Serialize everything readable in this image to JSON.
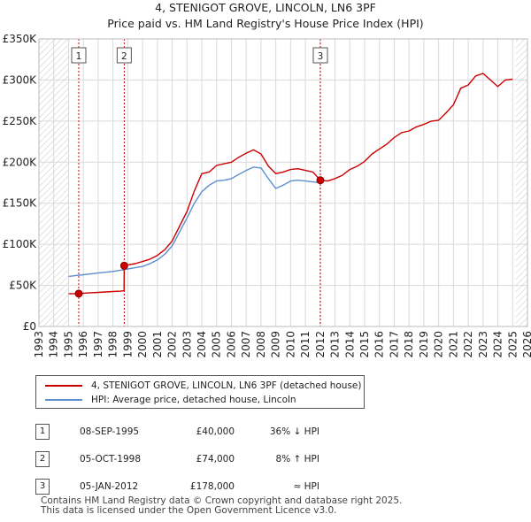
{
  "chart_data": {
    "type": "line",
    "title": "4, STENIGOT GROVE, LINCOLN, LN6 3PF",
    "subtitle": "Price paid vs. HM Land Registry's House Price Index (HPI)",
    "xlim": [
      1993,
      2026
    ],
    "ylim": [
      0,
      350000
    ],
    "x_ticks": [
      "1993",
      "1994",
      "1995",
      "1996",
      "1997",
      "1998",
      "1999",
      "2000",
      "2001",
      "2002",
      "2003",
      "2004",
      "2005",
      "2006",
      "2007",
      "2008",
      "2009",
      "2010",
      "2011",
      "2012",
      "2013",
      "2014",
      "2015",
      "2016",
      "2017",
      "2018",
      "2019",
      "2020",
      "2021",
      "2022",
      "2023",
      "2024",
      "2025",
      "2026"
    ],
    "y_ticks": [
      {
        "value": 0,
        "label": "£0"
      },
      {
        "value": 50000,
        "label": "£50K"
      },
      {
        "value": 100000,
        "label": "£100K"
      },
      {
        "value": 150000,
        "label": "£150K"
      },
      {
        "value": 200000,
        "label": "£200K"
      },
      {
        "value": 250000,
        "label": "£250K"
      },
      {
        "value": 300000,
        "label": "£300K"
      },
      {
        "value": 350000,
        "label": "£350K"
      }
    ],
    "hatch_ranges": [
      [
        1993,
        1995
      ],
      [
        2025.2,
        2026
      ]
    ],
    "series": [
      {
        "name": "4, STENIGOT GROVE, LINCOLN, LN6 3PF (detached house)",
        "color": "#cc0000",
        "x": [
          1995.0,
          1995.69,
          1996.0,
          1996.5,
          1997.0,
          1997.5,
          1998.0,
          1998.5,
          1998.75,
          1998.76,
          1999.0,
          1999.5,
          2000.0,
          2000.5,
          2001.0,
          2001.5,
          2002.0,
          2002.5,
          2003.0,
          2003.5,
          2004.0,
          2004.5,
          2005.0,
          2005.5,
          2006.0,
          2006.5,
          2007.0,
          2007.5,
          2008.0,
          2008.5,
          2009.0,
          2009.5,
          2010.0,
          2010.5,
          2011.0,
          2011.5,
          2012.01,
          2012.5,
          2013.0,
          2013.5,
          2014.0,
          2014.5,
          2015.0,
          2015.5,
          2016.0,
          2016.5,
          2017.0,
          2017.5,
          2018.0,
          2018.5,
          2019.0,
          2019.5,
          2020.0,
          2020.5,
          2021.0,
          2021.5,
          2022.0,
          2022.5,
          2023.0,
          2023.5,
          2024.0,
          2024.5,
          2025.0
        ],
        "y": [
          40000,
          40000,
          40500,
          41000,
          41500,
          42000,
          42500,
          43000,
          43500,
          74000,
          75000,
          76500,
          79000,
          82000,
          86500,
          93500,
          104000,
          122000,
          140000,
          165000,
          186000,
          188000,
          196000,
          198000,
          200000,
          206000,
          211000,
          215000,
          210000,
          195000,
          186000,
          188000,
          191000,
          192000,
          190000,
          188000,
          178000,
          177000,
          180000,
          184000,
          191000,
          195000,
          201000,
          210000,
          216000,
          222000,
          230000,
          236000,
          238000,
          243000,
          246000,
          250000,
          251000,
          260000,
          270000,
          290000,
          294000,
          305000,
          308000,
          300000,
          292000,
          300000,
          301000
        ]
      },
      {
        "name": "HPI: Average price, detached house, Lincoln",
        "color": "#5b8fd0",
        "x": [
          1995.0,
          1995.5,
          1996.0,
          1996.5,
          1997.0,
          1997.5,
          1998.0,
          1998.5,
          1999.0,
          1999.5,
          2000.0,
          2000.5,
          2001.0,
          2001.5,
          2002.0,
          2002.5,
          2003.0,
          2003.5,
          2004.0,
          2004.5,
          2005.0,
          2005.5,
          2006.0,
          2006.5,
          2007.0,
          2007.5,
          2008.0,
          2008.5,
          2009.0,
          2009.5,
          2010.0,
          2010.5,
          2011.0,
          2011.5,
          2012.0
        ],
        "y": [
          61000,
          62000,
          63000,
          64000,
          65000,
          66000,
          67000,
          68500,
          70000,
          71500,
          73000,
          76500,
          81000,
          88000,
          98000,
          115000,
          132000,
          150000,
          164000,
          172000,
          177000,
          178000,
          180000,
          185000,
          190000,
          194000,
          193000,
          180000,
          168000,
          172000,
          177000,
          178000,
          177000,
          176000,
          175000
        ]
      }
    ],
    "sales": [
      {
        "label": "1",
        "x": 1995.69,
        "y": 40000
      },
      {
        "label": "2",
        "x": 1998.76,
        "y": 74000
      },
      {
        "label": "3",
        "x": 2012.01,
        "y": 178000
      }
    ]
  },
  "legend": {
    "property_label": "4, STENIGOT GROVE, LINCOLN, LN6 3PF (detached house)",
    "hpi_label": "HPI: Average price, detached house, Lincoln",
    "property_color": "#cc0000",
    "hpi_color": "#5b8fd0"
  },
  "transactions": [
    {
      "num": "1",
      "date": "08-SEP-1995",
      "price": "£40,000",
      "hpi": "36% ↓ HPI"
    },
    {
      "num": "2",
      "date": "05-OCT-1998",
      "price": "£74,000",
      "hpi": "8% ↑ HPI"
    },
    {
      "num": "3",
      "date": "05-JAN-2012",
      "price": "£178,000",
      "hpi": "≈ HPI"
    }
  ],
  "footer": {
    "line1": "Contains HM Land Registry data © Crown copyright and database right 2025.",
    "line2": "This data is licensed under the Open Government Licence v3.0."
  }
}
